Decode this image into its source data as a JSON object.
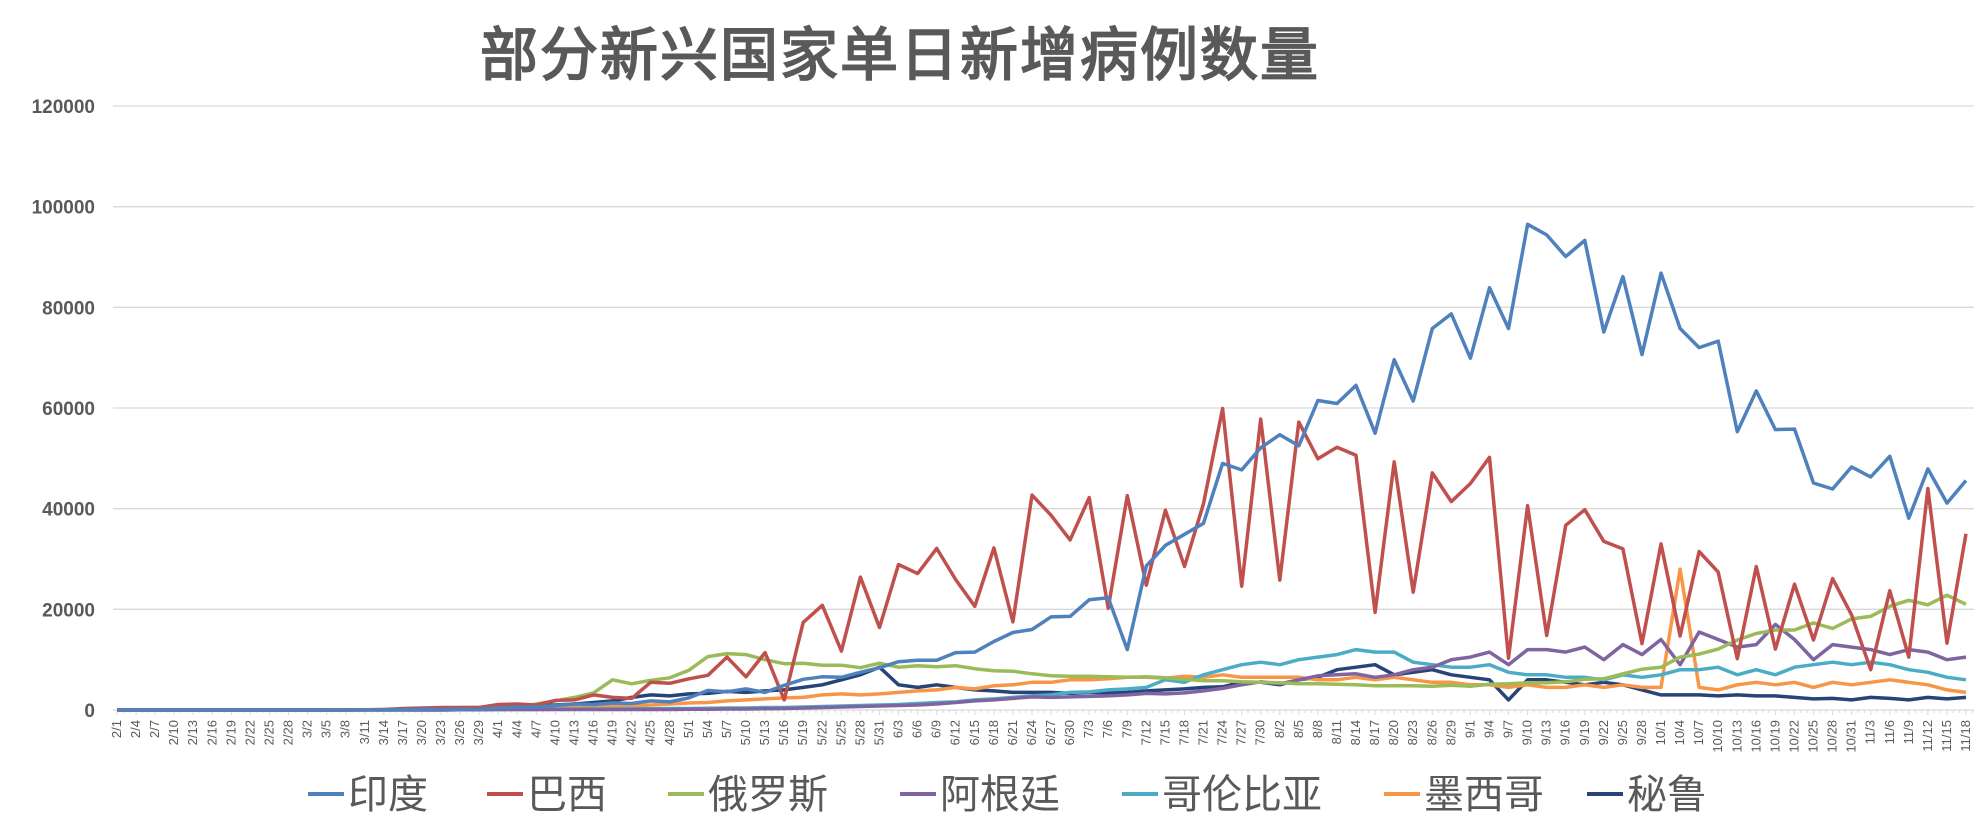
{
  "chart_data": {
    "type": "line",
    "title": "部分新兴国家单日新增病例数量",
    "xlabel": "",
    "ylabel": "",
    "ylim": [
      0,
      120000
    ],
    "yticks": [
      "0",
      "20000",
      "40000",
      "60000",
      "80000",
      "100000",
      "120000"
    ],
    "grid": true,
    "legend_position": "bottom",
    "x": [
      "2/1",
      "2/4",
      "2/7",
      "2/10",
      "2/13",
      "2/16",
      "2/19",
      "2/22",
      "2/25",
      "2/28",
      "3/2",
      "3/5",
      "3/8",
      "3/11",
      "3/14",
      "3/17",
      "3/20",
      "3/23",
      "3/26",
      "3/29",
      "4/1",
      "4/4",
      "4/7",
      "4/10",
      "4/13",
      "4/16",
      "4/19",
      "4/22",
      "4/25",
      "4/28",
      "5/1",
      "5/4",
      "5/7",
      "5/10",
      "5/13",
      "5/16",
      "5/19",
      "5/22",
      "5/25",
      "5/28",
      "5/31",
      "6/3",
      "6/6",
      "6/9",
      "6/12",
      "6/15",
      "6/18",
      "6/21",
      "6/24",
      "6/27",
      "6/30",
      "7/3",
      "7/6",
      "7/9",
      "7/12",
      "7/15",
      "7/18",
      "7/21",
      "7/24",
      "7/27",
      "7/30",
      "8/2",
      "8/5",
      "8/8",
      "8/11",
      "8/14",
      "8/17",
      "8/20",
      "8/23",
      "8/26",
      "8/29",
      "9/1",
      "9/4",
      "9/7",
      "9/10",
      "9/13",
      "9/16",
      "9/19",
      "9/22",
      "9/25",
      "9/28",
      "10/1",
      "10/4",
      "10/7",
      "10/10",
      "10/13",
      "10/16",
      "10/19",
      "10/22",
      "10/25",
      "10/28",
      "10/31",
      "11/3",
      "11/6",
      "11/9",
      "11/12",
      "11/15",
      "11/18"
    ],
    "series": [
      {
        "name": "印度",
        "color": "#4f81bd",
        "values": [
          0,
          0,
          0,
          0,
          0,
          0,
          0,
          0,
          0,
          0,
          0,
          0,
          10,
          20,
          20,
          100,
          200,
          100,
          200,
          100,
          400,
          600,
          600,
          900,
          1200,
          1100,
          1400,
          1300,
          1800,
          1600,
          2400,
          3900,
          3600,
          4200,
          3500,
          4900,
          6100,
          6600,
          6500,
          7500,
          8400,
          9600,
          9900,
          9900,
          11400,
          11500,
          13600,
          15400,
          16000,
          18500,
          18600,
          21900,
          22300,
          12000,
          28600,
          32700,
          34900,
          37100,
          49000,
          47700,
          52100,
          54700,
          52500,
          61500,
          60900,
          64500,
          55000,
          69600,
          61400,
          75800,
          78700,
          69900,
          83900,
          75800,
          96500,
          94400,
          90100,
          93300,
          75100,
          86100,
          70600,
          86800,
          75800,
          72000,
          73300,
          55300,
          63400,
          55700,
          55800,
          45100,
          43900,
          48300,
          46300,
          50400,
          38100,
          47900,
          41100,
          45600
        ]
      },
      {
        "name": "巴西",
        "color": "#c0504d",
        "values": [
          0,
          0,
          0,
          0,
          0,
          0,
          0,
          0,
          0,
          0,
          0,
          0,
          0,
          50,
          100,
          300,
          400,
          500,
          500,
          500,
          1100,
          1200,
          1000,
          1900,
          2000,
          3000,
          2500,
          2300,
          5500,
          5300,
          6200,
          6900,
          10500,
          6600,
          11400,
          2000,
          17400,
          20800,
          11700,
          26400,
          16400,
          28900,
          27100,
          32100,
          25900,
          20600,
          32200,
          17500,
          42700,
          38700,
          33800,
          42200,
          20200,
          42600,
          24800,
          39700,
          28500,
          41000,
          59900,
          24600,
          57800,
          25800,
          57200,
          49900,
          52200,
          50600,
          19400,
          49300,
          23400,
          47100,
          41400,
          45000,
          50200,
          10300,
          40600,
          14800,
          36700,
          39800,
          33500,
          32000,
          13200,
          33000,
          14700,
          31500,
          27400,
          10200,
          28500,
          12100,
          25000,
          13900,
          26100,
          18900,
          8000,
          23700,
          10500,
          44000,
          13300,
          35000
        ]
      },
      {
        "name": "俄罗斯",
        "color": "#9bbb59",
        "values": [
          0,
          0,
          0,
          0,
          0,
          0,
          0,
          0,
          0,
          0,
          0,
          0,
          0,
          0,
          0,
          100,
          200,
          300,
          500,
          500,
          800,
          600,
          1200,
          1800,
          2500,
          3400,
          6000,
          5200,
          5900,
          6400,
          7900,
          10600,
          11200,
          11000,
          10000,
          9200,
          9300,
          8900,
          8900,
          8400,
          9300,
          8500,
          8800,
          8600,
          8800,
          8200,
          7800,
          7700,
          7200,
          6800,
          6700,
          6700,
          6600,
          6500,
          6600,
          6400,
          6100,
          5800,
          5800,
          5600,
          5500,
          5400,
          5200,
          5200,
          5100,
          5000,
          4800,
          4800,
          4800,
          4700,
          4900,
          4700,
          5100,
          5200,
          5400,
          5400,
          5600,
          6100,
          6200,
          7200,
          8100,
          8500,
          10500,
          11100,
          12100,
          13900,
          15200,
          15900,
          15900,
          17300,
          16200,
          18100,
          18600,
          20600,
          21800,
          20900,
          22800,
          21000
        ]
      },
      {
        "name": "阿根廷",
        "color": "#8064a2",
        "values": [
          0,
          0,
          0,
          0,
          0,
          0,
          0,
          0,
          0,
          0,
          0,
          0,
          0,
          0,
          0,
          0,
          0,
          0,
          50,
          50,
          100,
          100,
          100,
          100,
          100,
          100,
          100,
          100,
          100,
          100,
          150,
          150,
          200,
          200,
          250,
          300,
          400,
          500,
          600,
          700,
          800,
          900,
          1000,
          1200,
          1500,
          1800,
          2000,
          2300,
          2600,
          2500,
          2600,
          2700,
          2800,
          3000,
          3300,
          3200,
          3400,
          3800,
          4300,
          5000,
          5600,
          5200,
          6000,
          6800,
          7000,
          7200,
          6500,
          7000,
          8000,
          8500,
          10000,
          10500,
          11500,
          9000,
          12000,
          12000,
          11500,
          12500,
          10000,
          13000,
          11000,
          14000,
          9000,
          15500,
          14000,
          12500,
          13000,
          17000,
          14000,
          10000,
          13000,
          12500,
          12000,
          11000,
          12000,
          11500,
          10000,
          10500
        ]
      },
      {
        "name": "哥伦比亚",
        "color": "#4bacc6",
        "values": [
          0,
          0,
          0,
          0,
          0,
          0,
          0,
          0,
          0,
          0,
          0,
          0,
          0,
          0,
          0,
          0,
          0,
          0,
          50,
          50,
          100,
          100,
          100,
          150,
          200,
          200,
          200,
          250,
          250,
          300,
          300,
          350,
          400,
          400,
          500,
          500,
          600,
          700,
          800,
          900,
          1000,
          1100,
          1300,
          1500,
          1600,
          2000,
          2200,
          2500,
          2800,
          3000,
          3500,
          3600,
          4000,
          4200,
          4500,
          6000,
          5500,
          7000,
          8000,
          9000,
          9500,
          9000,
          10000,
          10500,
          11000,
          12000,
          11500,
          11500,
          9500,
          9000,
          8500,
          8500,
          9000,
          7500,
          7000,
          7000,
          6500,
          6500,
          6000,
          7000,
          6500,
          7000,
          8000,
          8000,
          8500,
          7000,
          8000,
          7000,
          8500,
          9000,
          9500,
          9000,
          9500,
          9000,
          8000,
          7500,
          6500,
          6000
        ]
      },
      {
        "name": "墨西哥",
        "color": "#f79646",
        "values": [
          0,
          0,
          0,
          0,
          0,
          0,
          0,
          0,
          0,
          0,
          0,
          0,
          0,
          0,
          0,
          0,
          50,
          100,
          100,
          150,
          200,
          300,
          400,
          500,
          500,
          600,
          700,
          800,
          1000,
          1200,
          1400,
          1500,
          1800,
          2000,
          2200,
          2400,
          2500,
          3000,
          3200,
          3000,
          3200,
          3500,
          3800,
          4000,
          4500,
          4200,
          4800,
          5000,
          5500,
          5500,
          6000,
          6000,
          6200,
          6500,
          6500,
          6300,
          6700,
          6500,
          7000,
          6500,
          6500,
          6500,
          6500,
          6000,
          6000,
          6500,
          6000,
          6500,
          6000,
          5500,
          5500,
          5000,
          5000,
          4500,
          5000,
          4500,
          4500,
          5000,
          4500,
          5000,
          4500,
          4500,
          28000,
          4500,
          4000,
          5000,
          5500,
          5000,
          5500,
          4500,
          5500,
          5000,
          5500,
          6000,
          5500,
          5000,
          4000,
          3500
        ]
      },
      {
        "name": "秘鲁",
        "color": "#264478",
        "values": [
          0,
          0,
          0,
          0,
          0,
          0,
          0,
          0,
          0,
          0,
          0,
          0,
          10,
          20,
          50,
          100,
          200,
          200,
          250,
          200,
          300,
          500,
          1000,
          1000,
          1200,
          1500,
          1800,
          2500,
          3000,
          2800,
          3200,
          3300,
          3700,
          3500,
          3800,
          4000,
          4500,
          5000,
          6000,
          7000,
          8500,
          5000,
          4500,
          5000,
          4500,
          4000,
          3800,
          3500,
          3500,
          3500,
          3300,
          3500,
          3400,
          3500,
          3800,
          4000,
          4200,
          4500,
          4600,
          5500,
          5500,
          5000,
          6000,
          6500,
          8000,
          8500,
          9000,
          7000,
          7500,
          8000,
          7000,
          6500,
          6000,
          2000,
          6000,
          6000,
          5500,
          5000,
          5500,
          5000,
          4000,
          3000,
          3000,
          3000,
          2800,
          3000,
          2800,
          2800,
          2500,
          2200,
          2300,
          2000,
          2500,
          2300,
          2000,
          2500,
          2200,
          2500
        ]
      }
    ]
  }
}
